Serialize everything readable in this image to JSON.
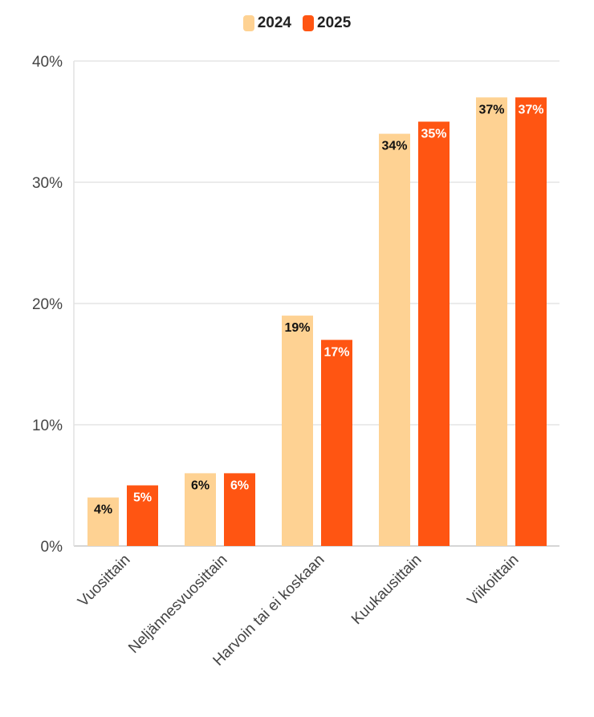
{
  "legend": [
    {
      "name": "2024",
      "color": "#FED293"
    },
    {
      "name": "2025",
      "color": "#FF5512"
    }
  ],
  "chart_data": {
    "type": "bar",
    "categories": [
      "Vuosittain",
      "Neljännesvuosittain",
      "Harvoin tai ei koskaan",
      "Kuukausittain",
      "Viikoittain"
    ],
    "series": [
      {
        "name": "2024",
        "color": "#FED293",
        "label_color": "#111111",
        "values": [
          4,
          6,
          19,
          34,
          37
        ],
        "labels": [
          "4%",
          "6%",
          "19%",
          "34%",
          "37%"
        ]
      },
      {
        "name": "2025",
        "color": "#FF5512",
        "label_color": "#ffffff",
        "values": [
          5,
          6,
          17,
          35,
          37
        ],
        "labels": [
          "5%",
          "6%",
          "17%",
          "35%",
          "37%"
        ]
      }
    ],
    "yticks": [
      0,
      10,
      20,
      30,
      40
    ],
    "ytick_labels": [
      "0%",
      "10%",
      "20%",
      "30%",
      "40%"
    ],
    "ylim": [
      0,
      40
    ],
    "grid": true,
    "legend_position": "top-center",
    "title": "",
    "xlabel": "",
    "ylabel": ""
  }
}
